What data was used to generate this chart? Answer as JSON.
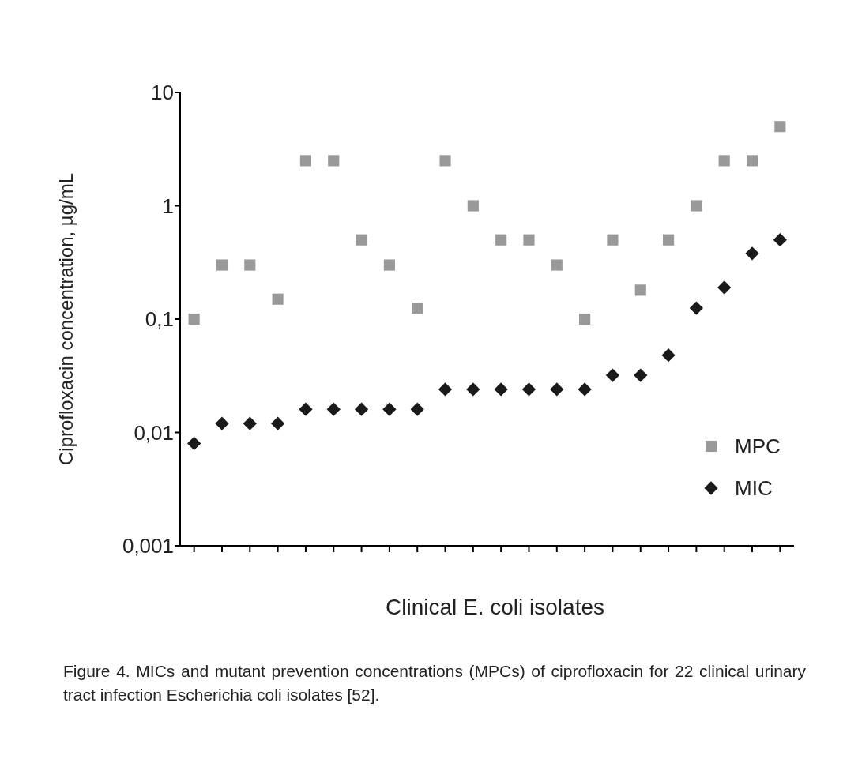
{
  "chart_data": {
    "type": "scatter",
    "xlabel": "Clinical E. coli isolates",
    "ylabel": "Ciprofloxacin concentration, µg/mL",
    "categories": [
      null,
      null,
      null,
      null,
      null,
      null,
      null,
      null,
      null,
      null,
      null,
      null,
      null,
      null,
      null,
      null,
      null,
      null,
      null,
      null,
      null,
      null
    ],
    "series": [
      {
        "name": "MPC",
        "color": "#999999",
        "marker": "square",
        "values": [
          0.1,
          0.3,
          0.3,
          0.15,
          2.5,
          2.5,
          0.5,
          0.3,
          0.125,
          2.5,
          1,
          0.5,
          0.5,
          0.3,
          0.1,
          0.5,
          0.18,
          0.5,
          1,
          2.5,
          2.5,
          5
        ]
      },
      {
        "name": "MIC",
        "color": "#1a1a1a",
        "marker": "diamond",
        "values": [
          0.008,
          0.012,
          0.012,
          0.012,
          0.016,
          0.016,
          0.016,
          0.016,
          0.016,
          0.024,
          0.024,
          0.024,
          0.024,
          0.024,
          0.024,
          0.032,
          0.032,
          0.048,
          0.125,
          0.19,
          0.38,
          0.5
        ]
      }
    ],
    "log": "y",
    "ylim": [
      0.001,
      10
    ],
    "yticks": [
      {
        "value": 0.001,
        "label": "0,001"
      },
      {
        "value": 0.01,
        "label": "0,01"
      },
      {
        "value": 0.1,
        "label": "0,1"
      },
      {
        "value": 1,
        "label": "1"
      },
      {
        "value": 10,
        "label": "10"
      }
    ],
    "grid": false,
    "legend": "bottom right",
    "annotations": [
      "Figure 4. MICs and mutant prevention concentrations (MPCs) of ciprofloxacin for 22 clinical urinary tract infection Escherichia coli isolates [52]."
    ]
  }
}
